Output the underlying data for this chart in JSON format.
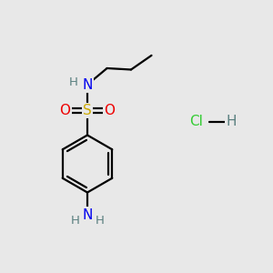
{
  "background_color": "#e8e8e8",
  "atom_colors": {
    "C": "#000000",
    "H": "#5a8080",
    "N": "#0000ee",
    "O": "#ee0000",
    "S": "#ccaa00",
    "Cl": "#33cc33"
  },
  "bond_color": "#000000",
  "bond_width": 1.6,
  "fig_bg": "#e8e8e8"
}
